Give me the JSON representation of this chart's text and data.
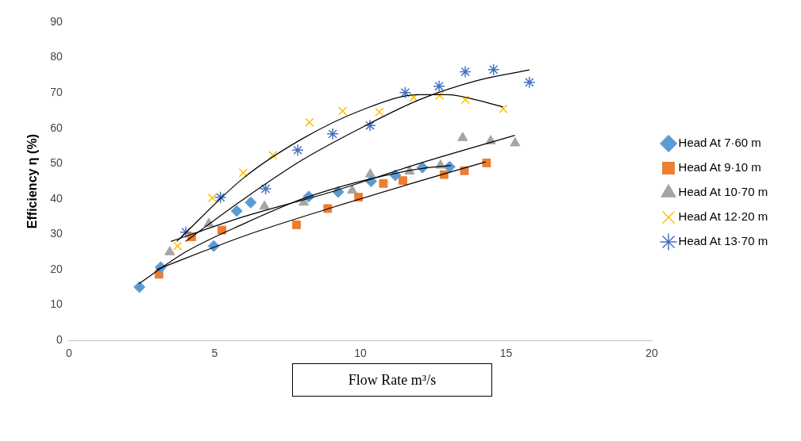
{
  "chart_data": {
    "type": "scatter",
    "xlabel": "Flow Rate m³/s",
    "ylabel": "Efficiency η (%)",
    "xlim": [
      0,
      20
    ],
    "xticks": [
      0,
      5,
      10,
      15,
      20
    ],
    "ylim": [
      0,
      90
    ],
    "yticks": [
      0,
      10,
      20,
      30,
      40,
      50,
      60,
      70,
      80,
      90
    ],
    "grid": false,
    "legend": "right",
    "series": [
      {
        "name": "Head At 7·60 m",
        "color": "#5b9bd5",
        "marker": "diamond",
        "x": [
          2.42,
          3.15,
          4.97,
          5.76,
          6.24,
          8.23,
          9.24,
          10.37,
          11.2,
          12.13,
          13.06
        ],
        "values": [
          15.1,
          20.7,
          26.7,
          36.6,
          39,
          40.7,
          42,
          45,
          46.7,
          48.9,
          49.1
        ]
      },
      {
        "name": "Head At 9·10 m",
        "color": "#ed7d31",
        "marker": "square",
        "x": [
          3.09,
          4.21,
          5.25,
          7.81,
          8.88,
          9.94,
          10.79,
          11.46,
          12.87,
          13.57,
          14.33
        ],
        "values": [
          18.7,
          29.3,
          31.2,
          32.7,
          37.3,
          40.5,
          44.4,
          45.2,
          46.9,
          48,
          50.2
        ]
      },
      {
        "name": "Head At 10·70 m",
        "color": "#a5a5a5",
        "marker": "triangle",
        "x": [
          3.46,
          4.8,
          6.71,
          8.06,
          9.72,
          10.34,
          11.69,
          12.75,
          13.51,
          14.47,
          15.31
        ],
        "values": [
          25,
          33,
          37.9,
          39,
          42.4,
          47,
          47.8,
          49.5,
          57.3,
          56.4,
          55.8
        ]
      },
      {
        "name": "Head At 12·20 m",
        "color": "#ffc000",
        "marker": "cross",
        "x": [
          3.73,
          4.92,
          5.98,
          7.0,
          8.25,
          9.39,
          10.65,
          11.83,
          12.72,
          13.6,
          14.9
        ],
        "values": [
          26.7,
          40.3,
          47.4,
          52.4,
          61.7,
          64.9,
          64.6,
          68.7,
          69.3,
          68.1,
          65.5
        ]
      },
      {
        "name": "Head At 13·70 m",
        "color": "#4472c4",
        "marker": "cross",
        "x": [
          4.01,
          5.2,
          6.75,
          7.85,
          9.05,
          10.33,
          11.54,
          12.7,
          13.6,
          14.57,
          15.8
        ],
        "values": [
          30.6,
          40.5,
          42.9,
          53.8,
          58.4,
          60.8,
          70.1,
          71.9,
          76,
          76.6,
          73
        ]
      },
      {
        "type": "line",
        "color": "#000000",
        "marker": "none",
        "x": [
          2.4,
          4,
          6,
          8,
          10,
          12,
          13.1
        ],
        "values": [
          16,
          25,
          33,
          40,
          45,
          48.5,
          49.5
        ]
      },
      {
        "type": "line",
        "color": "#000000",
        "marker": "none",
        "x": [
          3,
          6,
          9,
          12,
          14.3
        ],
        "values": [
          20,
          29.5,
          37.5,
          45,
          50.5
        ]
      },
      {
        "type": "line",
        "color": "#000000",
        "marker": "none",
        "x": [
          3.5,
          6,
          9,
          12,
          15.3
        ],
        "values": [
          28,
          35,
          42,
          50,
          58
        ]
      },
      {
        "type": "line",
        "color": "#000000",
        "marker": "none",
        "x": [
          3.7,
          6,
          8,
          10,
          12,
          13,
          14,
          14.9
        ],
        "values": [
          28,
          46,
          57,
          65,
          69.5,
          69.5,
          68,
          66
        ]
      },
      {
        "type": "line",
        "color": "#000000",
        "marker": "none",
        "x": [
          4,
          6,
          8,
          10,
          12,
          14,
          15.8
        ],
        "values": [
          28,
          40,
          51,
          60,
          68,
          73.5,
          76.5
        ]
      }
    ]
  }
}
